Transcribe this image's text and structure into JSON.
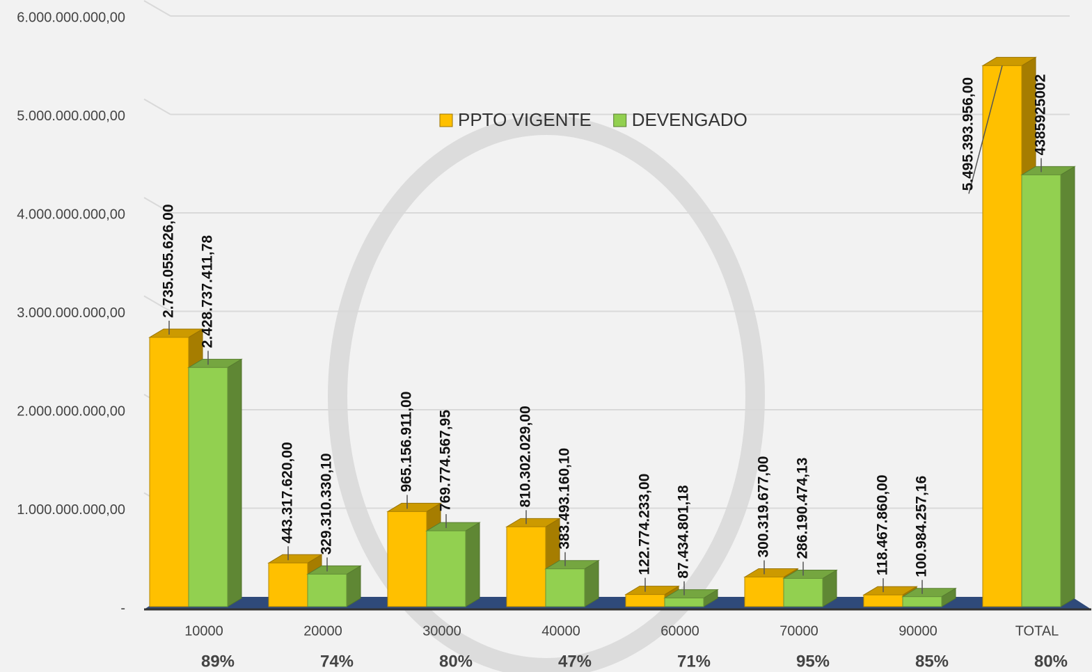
{
  "chart_data": {
    "type": "bar3d",
    "categories": [
      "10000",
      "20000",
      "30000",
      "40000",
      "60000",
      "70000",
      "90000",
      "TOTAL"
    ],
    "series": [
      {
        "name": "PPTO VIGENTE",
        "color": "#ffc000",
        "values": [
          2735055626.0,
          443317620.0,
          965156911.0,
          810302029.0,
          122774233.0,
          300319677.0,
          118467860.0,
          5495393956.0
        ],
        "value_labels": [
          "2.735.055.626,00",
          "443.317.620,00",
          "965.156.911,00",
          "810.302.029,00",
          "122.774.233,00",
          "300.319.677,00",
          "118.467.860,00",
          "5.495.393.956,00"
        ]
      },
      {
        "name": "DEVENGADO",
        "color": "#92d050",
        "values": [
          2428737411.78,
          329310330.1,
          769774567.95,
          383493160.1,
          87434801.18,
          286190474.13,
          100984257.16,
          4385925002
        ],
        "value_labels": [
          "2.428.737.411,78",
          "329.310.330,10",
          "769.774.567,95",
          "383.493.160,10",
          "87.434.801,18",
          "286.190.474,13",
          "100.984.257,16",
          "4385925002"
        ]
      }
    ],
    "percent_labels": [
      "89%",
      "74%",
      "80%",
      "47%",
      "71%",
      "95%",
      "85%",
      "80%"
    ],
    "ylim": [
      0,
      6000000000
    ],
    "yticks": [
      {
        "value": 0,
        "label": "-"
      },
      {
        "value": 1000000000,
        "label": "1.000.000.000,00"
      },
      {
        "value": 2000000000,
        "label": "2.000.000.000,00"
      },
      {
        "value": 3000000000,
        "label": "3.000.000.000,00"
      },
      {
        "value": 4000000000,
        "label": "4.000.000.000,00"
      },
      {
        "value": 5000000000,
        "label": "5.000.000.000,00"
      },
      {
        "value": 6000000000,
        "label": "6.000.000.000,00"
      }
    ],
    "grid": true,
    "legend": "top"
  }
}
